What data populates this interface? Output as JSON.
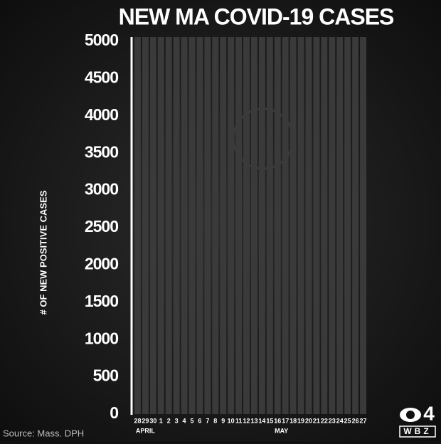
{
  "chart_data": {
    "type": "bar",
    "title": "NEW MA COVID-19 CASES",
    "y_label": "# OF NEW POSITIVE CASES",
    "categories": [
      "28",
      "29",
      "30",
      "1",
      "2",
      "3",
      "4",
      "5",
      "6",
      "7",
      "8",
      "9",
      "10",
      "11",
      "12",
      "13",
      "14",
      "15",
      "16",
      "17",
      "18",
      "19",
      "20",
      "21",
      "22",
      "23",
      "24",
      "25",
      "26",
      "27"
    ],
    "month_labels": [
      "APRIL",
      "MAY"
    ],
    "ylim": [
      0,
      5000
    ],
    "yticks": [
      0,
      500,
      1000,
      1500,
      2000,
      2500,
      3000,
      3500,
      4000,
      4500,
      5000
    ],
    "color": "#3a3a3a"
  },
  "source": "Source: Mass. DPH",
  "logo": {
    "number": "4",
    "text": "WBZ"
  }
}
